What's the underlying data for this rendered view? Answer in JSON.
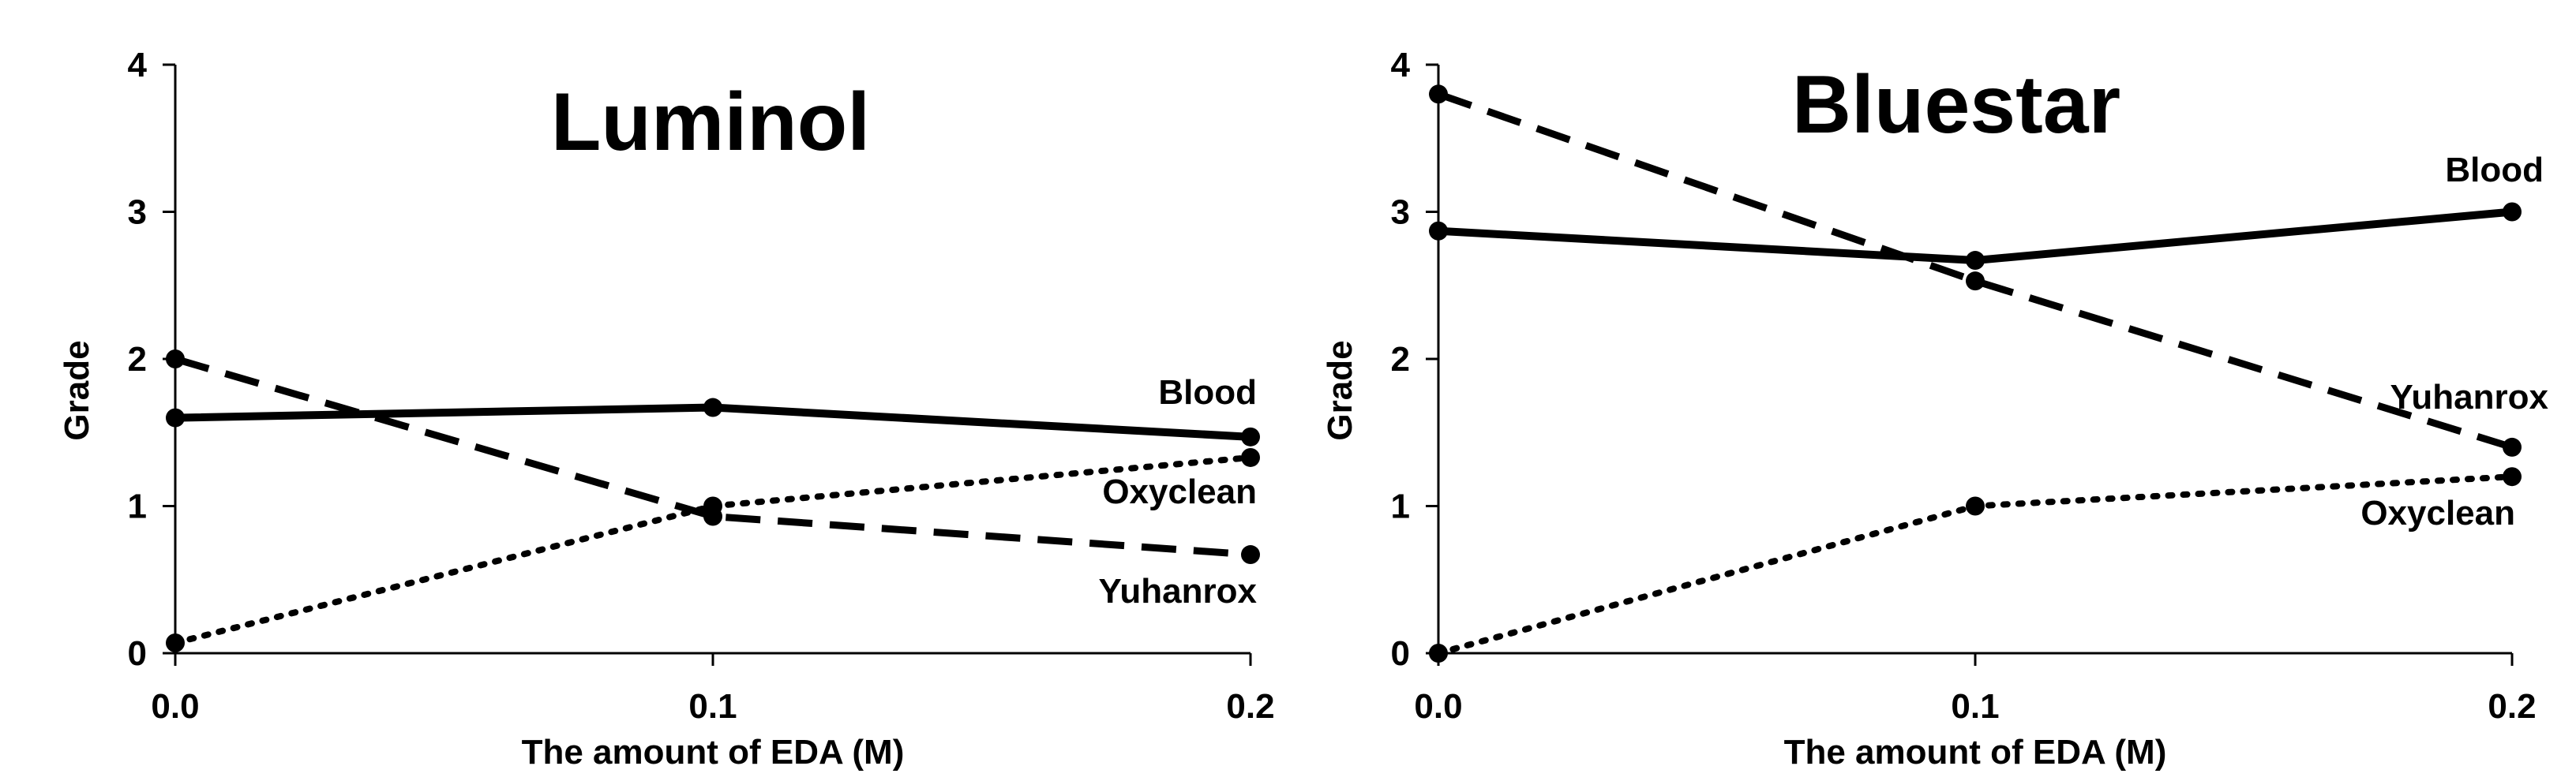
{
  "chart_data": [
    {
      "type": "line",
      "title": "Luminol",
      "xlabel": "The amount of EDA (M)",
      "ylabel": "Grade",
      "x": [
        0.0,
        0.1,
        0.2
      ],
      "x_tick_labels": [
        "0.0",
        "0.1",
        "0.2"
      ],
      "xlim": [
        0.0,
        0.2
      ],
      "ylim": [
        0,
        4
      ],
      "y_ticks": [
        0,
        1,
        2,
        3,
        4
      ],
      "y_tick_labels": [
        "0",
        "1",
        "2",
        "3",
        "4"
      ],
      "grid": false,
      "legend": "none",
      "series": [
        {
          "name": "Blood",
          "style": "solid",
          "values": [
            1.6,
            1.67,
            1.47
          ]
        },
        {
          "name": "Oxyclean",
          "style": "dotted",
          "values": [
            0.07,
            1.0,
            1.33
          ]
        },
        {
          "name": "Yuhanrox",
          "style": "dashed",
          "values": [
            2.0,
            0.93,
            0.67
          ]
        }
      ]
    },
    {
      "type": "line",
      "title": "Bluestar",
      "xlabel": "The amount of EDA (M)",
      "ylabel": "Grade",
      "x": [
        0.0,
        0.1,
        0.2
      ],
      "x_tick_labels": [
        "0.0",
        "0.1",
        "0.2"
      ],
      "xlim": [
        0.0,
        0.2
      ],
      "ylim": [
        0,
        4
      ],
      "y_ticks": [
        0,
        1,
        2,
        3,
        4
      ],
      "y_tick_labels": [
        "0",
        "1",
        "2",
        "3",
        "4"
      ],
      "grid": false,
      "legend": "none",
      "series": [
        {
          "name": "Blood",
          "style": "solid",
          "values": [
            2.87,
            2.67,
            3.0
          ]
        },
        {
          "name": "Oxyclean",
          "style": "dotted",
          "values": [
            0.0,
            1.0,
            1.2
          ]
        },
        {
          "name": "Yuhanrox",
          "style": "dashed",
          "values": [
            3.8,
            2.53,
            1.4
          ]
        }
      ]
    }
  ]
}
